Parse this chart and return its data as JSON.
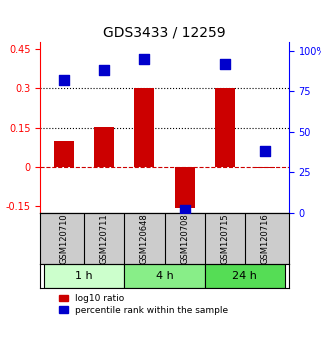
{
  "title": "GDS3433 / 12259",
  "samples": [
    "GSM120710",
    "GSM120711",
    "GSM120648",
    "GSM120708",
    "GSM120715",
    "GSM120716"
  ],
  "log10_ratio": [
    0.1,
    0.152,
    0.302,
    -0.155,
    0.302,
    -0.005
  ],
  "percentile_rank": [
    82,
    88,
    95,
    2,
    92,
    38
  ],
  "time_groups": [
    {
      "label": "1 h",
      "start": 0,
      "end": 2,
      "color": "#ccffcc"
    },
    {
      "label": "4 h",
      "start": 2,
      "end": 4,
      "color": "#88ee88"
    },
    {
      "label": "24 h",
      "start": 4,
      "end": 6,
      "color": "#55dd55"
    }
  ],
  "ylim_left": [
    -0.175,
    0.475
  ],
  "ylim_right": [
    0,
    105
  ],
  "yticks_left": [
    -0.15,
    0,
    0.15,
    0.3,
    0.45
  ],
  "yticks_right": [
    0,
    25,
    50,
    75,
    100
  ],
  "ytick_labels_left": [
    "-0.15",
    "0",
    "0.15",
    "0.3",
    "0.45"
  ],
  "ytick_labels_right": [
    "0",
    "25",
    "50",
    "75",
    "100%"
  ],
  "hlines": [
    0.15,
    0.3
  ],
  "dashed_hline": 0,
  "bar_color": "#cc0000",
  "dot_color": "#0000cc",
  "bar_width": 0.5,
  "dot_size": 60,
  "grid_color": "#000000",
  "background_color": "#ffffff",
  "sample_box_color": "#cccccc",
  "legend_red": "log10 ratio",
  "legend_blue": "percentile rank within the sample"
}
